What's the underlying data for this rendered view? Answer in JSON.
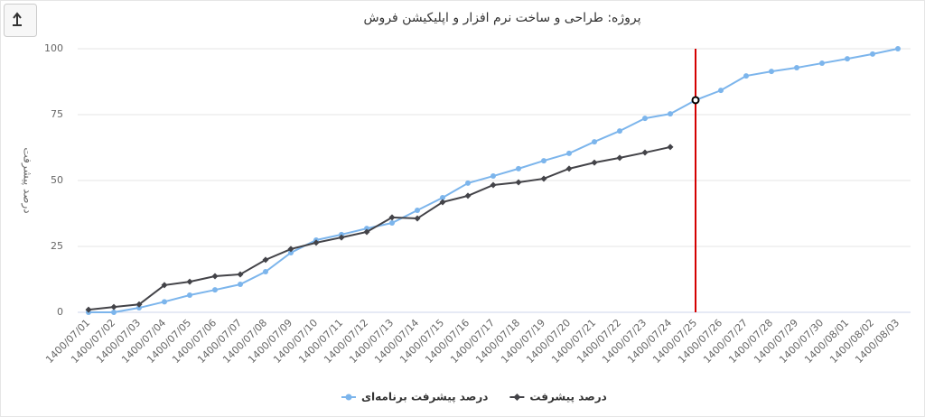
{
  "chart_data": {
    "type": "line",
    "title": "پروژه: طراحی و ساخت نرم افزار و اپلیکیشن فروش",
    "y_label": "درصد پیشرفت",
    "categories": [
      "1400/07/01",
      "1400/07/02",
      "1400/07/03",
      "1400/07/04",
      "1400/07/05",
      "1400/07/06",
      "1400/07/07",
      "1400/07/08",
      "1400/07/09",
      "1400/07/10",
      "1400/07/11",
      "1400/07/12",
      "1400/07/13",
      "1400/07/14",
      "1400/07/15",
      "1400/07/16",
      "1400/07/17",
      "1400/07/18",
      "1400/07/19",
      "1400/07/20",
      "1400/07/21",
      "1400/07/22",
      "1400/07/23",
      "1400/07/24",
      "1400/07/25",
      "1400/07/26",
      "1400/07/27",
      "1400/07/28",
      "1400/07/29",
      "1400/07/30",
      "1400/08/01",
      "1400/08/02",
      "1400/08/03"
    ],
    "series": [
      {
        "name": "درصد پیشرفت برنامه‌ای",
        "color": "#7cb5ec",
        "marker": "circle",
        "values": [
          0,
          0,
          1.7,
          4,
          6.5,
          8.5,
          10.6,
          15.4,
          22.6,
          27.4,
          29.5,
          31.8,
          33.9,
          38.7,
          43.5,
          49,
          51.7,
          54.5,
          57.5,
          60.3,
          64.7,
          68.8,
          73.6,
          75.3,
          80.5,
          84.2,
          89.7,
          91.4,
          92.8,
          94.5,
          96.2,
          98,
          100
        ]
      },
      {
        "name": "درصد پیشرفت",
        "color": "#434348",
        "marker": "diamond",
        "values": [
          1,
          2,
          3,
          10.3,
          11.6,
          13.7,
          14.4,
          19.9,
          24,
          26.4,
          28.4,
          30.5,
          36,
          35.6,
          41.8,
          44.2,
          48.3,
          49.3,
          50.7,
          54.5,
          56.8,
          58.6,
          60.6,
          62.7,
          null,
          null,
          null,
          null,
          null,
          null,
          null,
          null,
          null
        ]
      }
    ],
    "ylim": [
      0,
      100
    ],
    "yticks": [
      0,
      25,
      50,
      75,
      100
    ],
    "grid": true,
    "today": "1400/07/25",
    "today_color": "#d40000",
    "legend": "bottom"
  }
}
